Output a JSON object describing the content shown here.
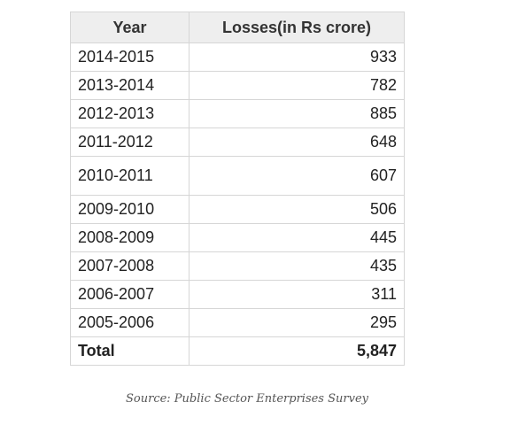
{
  "chart_data": {
    "type": "table",
    "columns": [
      "Year",
      "Losses(in Rs crore)"
    ],
    "rows": [
      {
        "year": "2014-2015",
        "value": "933"
      },
      {
        "year": "2013-2014",
        "value": "782"
      },
      {
        "year": "2012-2013",
        "value": "885"
      },
      {
        "year": "2011-2012",
        "value": "648"
      },
      {
        "year": "2010-2011",
        "value": "607"
      },
      {
        "year": "2009-2010",
        "value": "506"
      },
      {
        "year": "2008-2009",
        "value": "445"
      },
      {
        "year": "2007-2008",
        "value": "435"
      },
      {
        "year": "2006-2007",
        "value": "311"
      },
      {
        "year": "2005-2006",
        "value": "295"
      }
    ],
    "total": {
      "label": "Total",
      "value": "5,847"
    }
  },
  "source": "Source: Public Sector Enterprises Survey"
}
